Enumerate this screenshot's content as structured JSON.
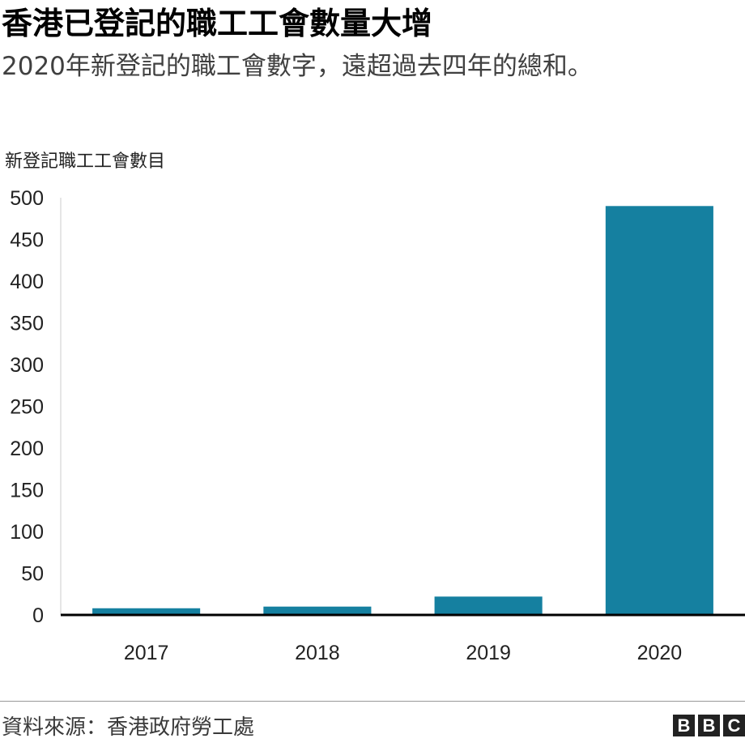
{
  "title": "香港已登記的職工工會數量大增",
  "subtitle": "2020年新登記的職工會數字，遠超過去四年的總和。",
  "source": "資料來源：香港政府勞工處",
  "logo": [
    "B",
    "B",
    "C"
  ],
  "chart_data": {
    "type": "bar",
    "ylabel": "新登記職工工會數目",
    "categories": [
      "2017",
      "2018",
      "2019",
      "2020"
    ],
    "values": [
      8,
      10,
      22,
      490
    ],
    "ylim": [
      0,
      500
    ],
    "yticks": [
      0,
      50,
      100,
      150,
      200,
      250,
      300,
      350,
      400,
      450,
      500
    ],
    "grid": false,
    "bar_color": "#1580a0"
  }
}
